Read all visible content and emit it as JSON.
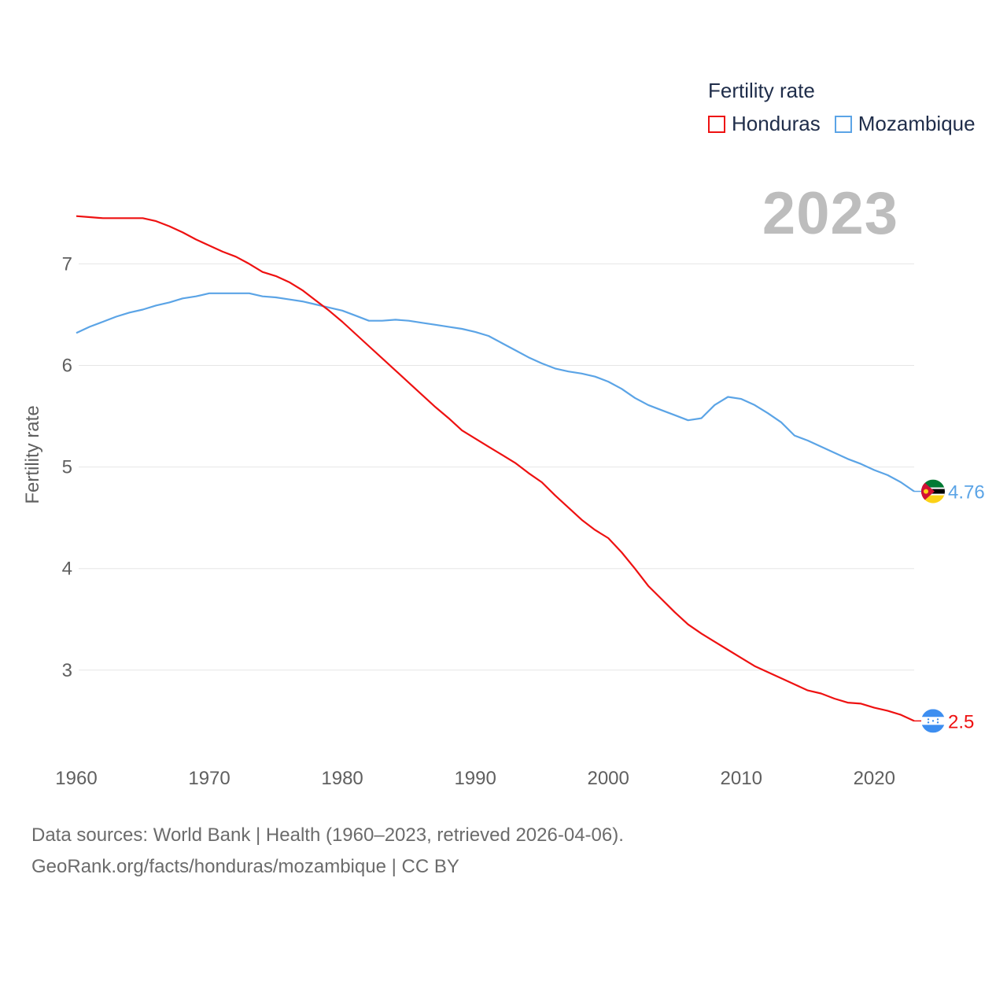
{
  "legend": {
    "title": "Fertility rate"
  },
  "year_label": "2023",
  "footer": {
    "line1": "Data sources: World Bank | Health (1960–2023, retrieved 2026-04-06).",
    "line2": "GeoRank.org/facts/honduras/mozambique | CC BY"
  },
  "chart_data": {
    "type": "line",
    "title": "",
    "xlabel": "",
    "ylabel": "Fertility rate",
    "xlim": [
      1960,
      2023
    ],
    "ylim": [
      2.1,
      7.7
    ],
    "x_ticks": [
      1960,
      1970,
      1980,
      1990,
      2000,
      2010,
      2020
    ],
    "y_ticks": [
      3,
      4,
      5,
      6,
      7
    ],
    "grid": true,
    "legend_position": "top-right",
    "x": [
      1960,
      1961,
      1962,
      1963,
      1964,
      1965,
      1966,
      1967,
      1968,
      1969,
      1970,
      1971,
      1972,
      1973,
      1974,
      1975,
      1976,
      1977,
      1978,
      1979,
      1980,
      1981,
      1982,
      1983,
      1984,
      1985,
      1986,
      1987,
      1988,
      1989,
      1990,
      1991,
      1992,
      1993,
      1994,
      1995,
      1996,
      1997,
      1998,
      1999,
      2000,
      2001,
      2002,
      2003,
      2004,
      2005,
      2006,
      2007,
      2008,
      2009,
      2010,
      2011,
      2012,
      2013,
      2014,
      2015,
      2016,
      2017,
      2018,
      2019,
      2020,
      2021,
      2022,
      2023
    ],
    "series": [
      {
        "name": "Honduras",
        "color": "#ee1111",
        "end_label": "2.5",
        "values": [
          7.47,
          7.46,
          7.45,
          7.45,
          7.45,
          7.45,
          7.42,
          7.37,
          7.31,
          7.24,
          7.18,
          7.12,
          7.07,
          7.0,
          6.92,
          6.88,
          6.82,
          6.74,
          6.64,
          6.54,
          6.43,
          6.31,
          6.19,
          6.07,
          5.95,
          5.83,
          5.71,
          5.59,
          5.48,
          5.36,
          5.28,
          5.2,
          5.12,
          5.04,
          4.94,
          4.85,
          4.72,
          4.6,
          4.48,
          4.38,
          4.3,
          4.16,
          4.0,
          3.83,
          3.7,
          3.57,
          3.45,
          3.36,
          3.28,
          3.2,
          3.12,
          3.04,
          2.98,
          2.92,
          2.86,
          2.8,
          2.77,
          2.72,
          2.68,
          2.67,
          2.63,
          2.6,
          2.56,
          2.5
        ]
      },
      {
        "name": "Mozambique",
        "color": "#5ba4e6",
        "end_label": "4.76",
        "values": [
          6.32,
          6.38,
          6.43,
          6.48,
          6.52,
          6.55,
          6.59,
          6.62,
          6.66,
          6.68,
          6.71,
          6.71,
          6.71,
          6.71,
          6.68,
          6.67,
          6.65,
          6.63,
          6.6,
          6.57,
          6.54,
          6.49,
          6.44,
          6.44,
          6.45,
          6.44,
          6.42,
          6.4,
          6.38,
          6.36,
          6.33,
          6.29,
          6.22,
          6.15,
          6.08,
          6.02,
          5.97,
          5.94,
          5.92,
          5.89,
          5.84,
          5.77,
          5.68,
          5.61,
          5.56,
          5.51,
          5.46,
          5.48,
          5.61,
          5.69,
          5.67,
          5.61,
          5.53,
          5.44,
          5.31,
          5.26,
          5.2,
          5.14,
          5.08,
          5.03,
          4.97,
          4.92,
          4.85,
          4.76
        ]
      }
    ]
  }
}
